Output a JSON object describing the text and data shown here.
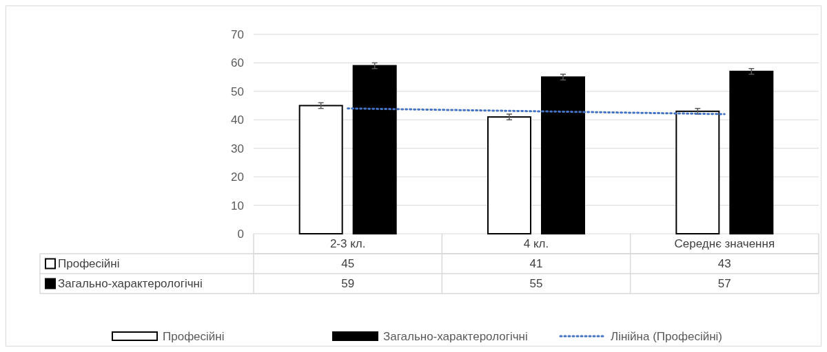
{
  "chart_data": {
    "type": "bar",
    "categories": [
      "2-3 кл.",
      "4 кл.",
      "Середнє значення"
    ],
    "series": [
      {
        "name": "Професійні",
        "color": "#ffffff",
        "values": [
          45,
          41,
          43
        ],
        "errors": [
          1,
          1,
          1
        ],
        "value_labels": [
          "45",
          "41",
          "43"
        ]
      },
      {
        "name": "Загально-характерологічні",
        "color": "#000000",
        "values": [
          59,
          55,
          57
        ],
        "errors": [
          1,
          1,
          1
        ],
        "value_labels": [
          "59",
          "55",
          "57"
        ]
      },
      {
        "name": "Лінійна (Професійні)",
        "type": "line",
        "color": "#4472c4",
        "line_style": "dotted",
        "marker": "none",
        "values": [
          44,
          43,
          42
        ]
      }
    ],
    "ylim": [
      0,
      70
    ],
    "yticks": [
      0,
      10,
      20,
      30,
      40,
      50,
      60,
      70
    ],
    "grid": "y",
    "legend": "bottom"
  }
}
